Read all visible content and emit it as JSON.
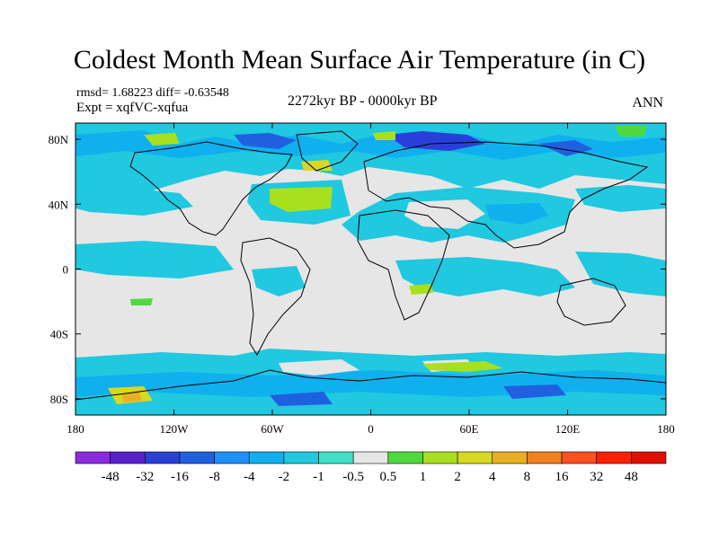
{
  "title": "Coldest Month Mean Surface Air Temperature (in C)",
  "stats": "rmsd= 1.68223 diff= -0.63548",
  "experiment": "Expt = xqfVC-xqfua",
  "period": "2272kyr BP - 0000kyr BP",
  "season": "ANN",
  "chart_data": {
    "type": "heatmap",
    "projection": "cylindrical-equidistant",
    "xlim": [
      -180,
      180
    ],
    "ylim": [
      -90,
      90
    ],
    "x_ticks": [
      "180",
      "120W",
      "60W",
      "0",
      "60E",
      "120E",
      "180"
    ],
    "y_ticks": [
      "80N",
      "40N",
      "0",
      "40S",
      "80S"
    ],
    "colorbar": {
      "labels": [
        "-48",
        "-32",
        "-16",
        "-8",
        "-4",
        "-2",
        "-1",
        "-0.5",
        "0.5",
        "1",
        "2",
        "4",
        "8",
        "16",
        "32",
        "48"
      ],
      "colors": [
        "#8a2be2",
        "#5a1fd0",
        "#2a3fd8",
        "#2060e0",
        "#1e90ff",
        "#10b0ee",
        "#20c8e0",
        "#40e0c8",
        "#e6e6e6",
        "#50d840",
        "#a8e020",
        "#d8d820",
        "#e8b020",
        "#f08020",
        "#ff5020",
        "#ff2000",
        "#e01000"
      ]
    }
  }
}
